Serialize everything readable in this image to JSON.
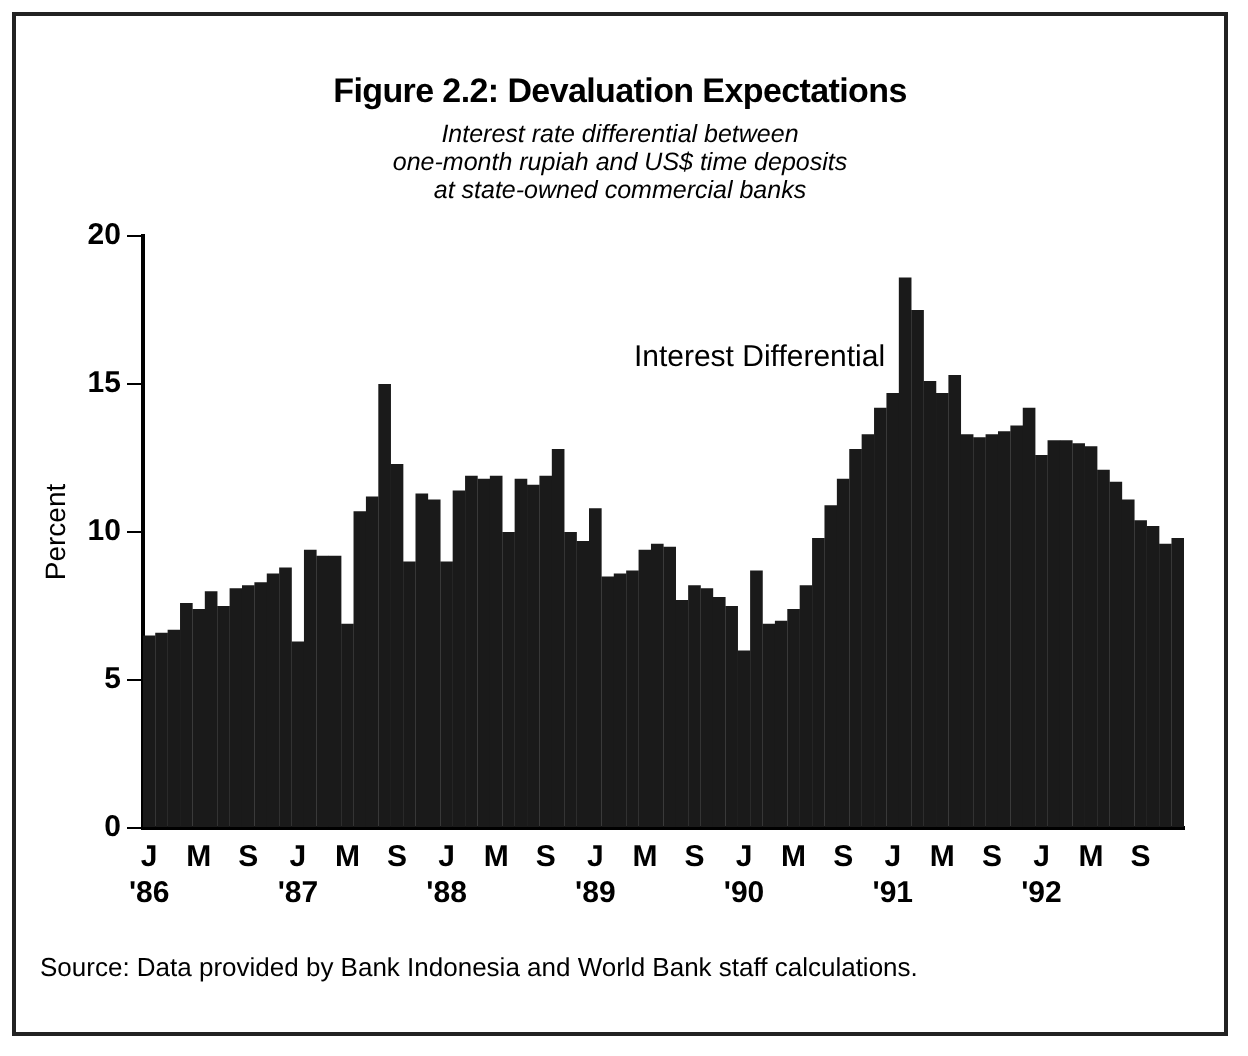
{
  "chart_data": {
    "type": "bar",
    "title": "Figure 2.2: Devaluation Expectations",
    "subtitle": "Interest rate differential between\none-month rupiah and US$ time deposits\nat state-owned commercial banks",
    "ylabel": "Percent",
    "categories": [
      "J\n'86",
      null,
      null,
      null,
      "M",
      null,
      null,
      null,
      "S",
      null,
      null,
      null,
      "J\n'87",
      null,
      null,
      null,
      "M",
      null,
      null,
      null,
      "S",
      null,
      null,
      null,
      "J\n'88",
      null,
      null,
      null,
      "M",
      null,
      null,
      null,
      "S",
      null,
      null,
      null,
      "J\n'89",
      null,
      null,
      null,
      "M",
      null,
      null,
      null,
      "S",
      null,
      null,
      null,
      "J\n'90",
      null,
      null,
      null,
      "M",
      null,
      null,
      null,
      "S",
      null,
      null,
      null,
      "J\n'91",
      null,
      null,
      null,
      "M",
      null,
      null,
      null,
      "S",
      null,
      null,
      null,
      "J\n'92",
      null,
      null,
      null,
      "M",
      null,
      null,
      null,
      "S",
      null,
      null,
      null
    ],
    "series": [
      {
        "name": "Interest Differential",
        "color": "#1a1a1a",
        "values": [
          6.5,
          6.6,
          6.7,
          7.6,
          7.4,
          8.0,
          7.5,
          8.1,
          8.2,
          8.3,
          8.6,
          8.8,
          6.3,
          9.4,
          9.2,
          9.2,
          6.9,
          10.7,
          11.2,
          15.0,
          12.3,
          9.0,
          11.3,
          11.1,
          9.0,
          11.4,
          11.9,
          11.8,
          11.9,
          10.0,
          11.8,
          11.6,
          11.9,
          12.8,
          10.0,
          9.7,
          10.8,
          8.5,
          8.6,
          8.7,
          9.4,
          9.6,
          9.5,
          7.7,
          8.2,
          8.1,
          7.8,
          7.5,
          6.0,
          8.7,
          6.9,
          7.0,
          7.4,
          8.2,
          9.8,
          10.9,
          11.8,
          12.8,
          13.3,
          14.2,
          14.7,
          18.6,
          17.5,
          15.1,
          14.7,
          15.3,
          13.3,
          13.2,
          13.3,
          13.4,
          13.6,
          14.2,
          12.6,
          13.1,
          13.1,
          13.0,
          12.9,
          12.1,
          11.7,
          11.1,
          10.4,
          10.2,
          9.6,
          9.8
        ]
      }
    ],
    "ylim": [
      0,
      20
    ],
    "yticks": [
      0,
      5,
      10,
      15,
      20
    ],
    "grid": false,
    "legend": false,
    "annotations": [
      "Source: Data provided by Bank Indonesia and World Bank staff calculations."
    ]
  }
}
